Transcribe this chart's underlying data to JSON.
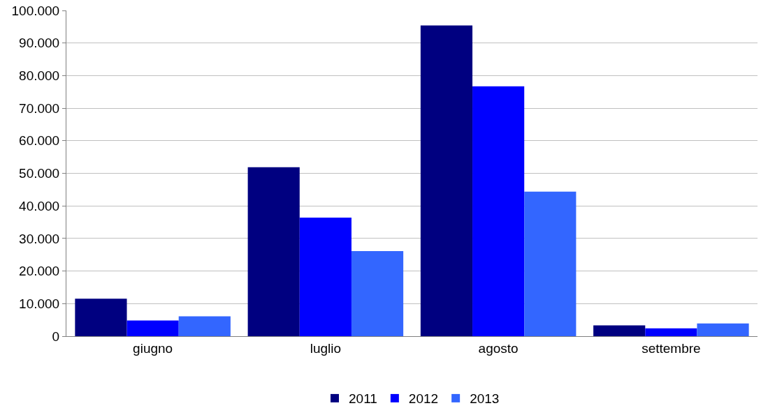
{
  "chart_data": {
    "type": "bar",
    "categories": [
      "giugno",
      "luglio",
      "agosto",
      "settembre"
    ],
    "series": [
      {
        "name": "2011",
        "color": "#000080",
        "values": [
          11500,
          51900,
          95400,
          3300
        ]
      },
      {
        "name": "2012",
        "color": "#0000ff",
        "values": [
          4800,
          36400,
          76700,
          2400
        ]
      },
      {
        "name": "2013",
        "color": "#3366ff",
        "values": [
          6100,
          26100,
          44400,
          3900
        ]
      }
    ],
    "ylim": [
      0,
      100000
    ],
    "yticks": [
      {
        "value": 0,
        "label": "0"
      },
      {
        "value": 10000,
        "label": "10.000"
      },
      {
        "value": 20000,
        "label": "20.000"
      },
      {
        "value": 30000,
        "label": "30.000"
      },
      {
        "value": 40000,
        "label": "40.000"
      },
      {
        "value": 50000,
        "label": "50.000"
      },
      {
        "value": 60000,
        "label": "60.000"
      },
      {
        "value": 70000,
        "label": "70.000"
      },
      {
        "value": 80000,
        "label": "80.000"
      },
      {
        "value": 90000,
        "label": "90.000"
      },
      {
        "value": 100000,
        "label": "100.000"
      }
    ],
    "grid": "y",
    "legend": "bottom"
  }
}
